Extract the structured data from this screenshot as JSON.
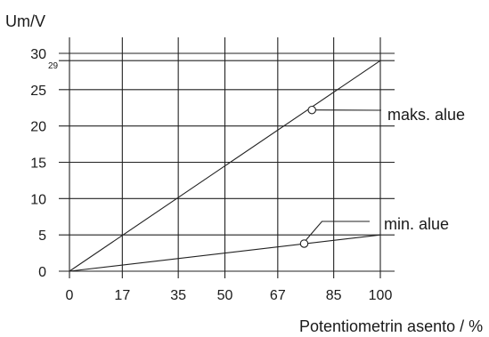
{
  "chart_data": {
    "type": "line",
    "ylabel": "Um/V",
    "xlabel": "Potentiometrin asento / %",
    "x_ticks": [
      0,
      17,
      35,
      50,
      67,
      85,
      100
    ],
    "y_ticks": [
      0,
      5,
      10,
      15,
      20,
      25,
      30
    ],
    "extra_y_tick": {
      "value": 29,
      "label": "29"
    },
    "xlim": [
      0,
      100
    ],
    "ylim": [
      0,
      30
    ],
    "grid": true,
    "series": [
      {
        "name": "maks. alue",
        "x": [
          0,
          100
        ],
        "y": [
          0,
          29
        ],
        "marker_x": 78,
        "marker_y": 22.2
      },
      {
        "name": "min. alue",
        "x": [
          0,
          100
        ],
        "y": [
          0,
          5
        ],
        "marker_x": 75.5,
        "marker_y": 3.8
      }
    ]
  }
}
